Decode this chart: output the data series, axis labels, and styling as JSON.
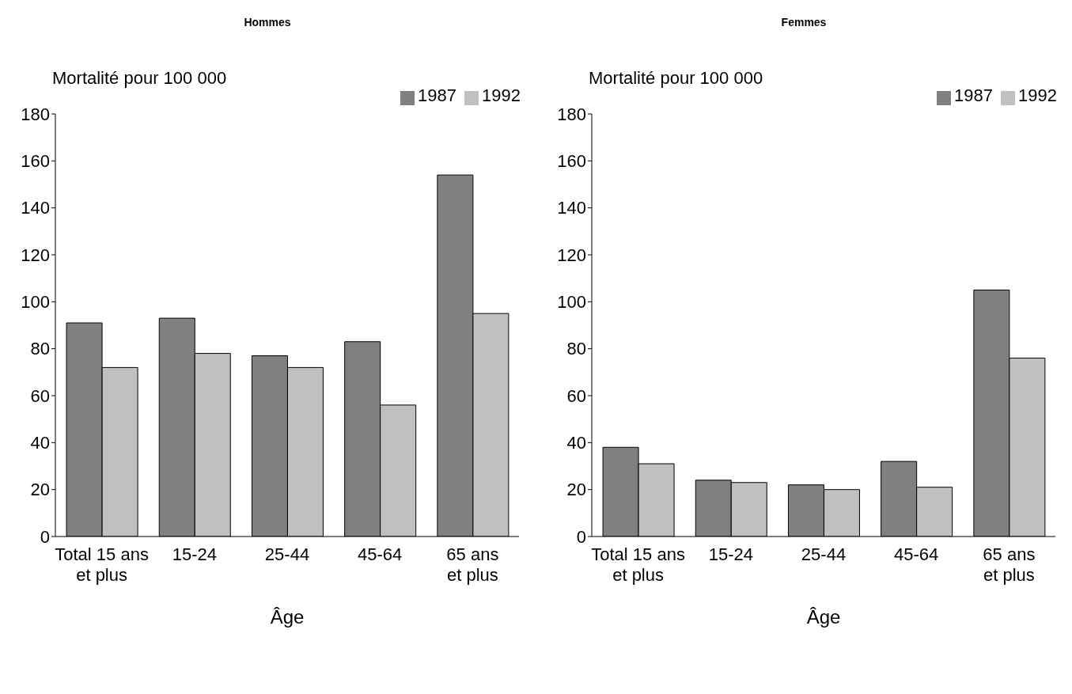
{
  "chart_data": [
    {
      "type": "bar",
      "title": "Hommes",
      "ylabel": "Mortalité pour 100 000",
      "xlabel": "Âge",
      "categories": [
        "Total 15 ans et plus",
        "15-24",
        "25-44",
        "45-64",
        "65 ans et plus"
      ],
      "series": [
        {
          "name": "1987",
          "color": "#808080",
          "values": [
            91,
            93,
            77,
            83,
            154
          ]
        },
        {
          "name": "1992",
          "color": "#c0c0c0",
          "values": [
            72,
            78,
            72,
            56,
            95
          ]
        }
      ],
      "ylim": [
        0,
        180
      ],
      "yticks": [
        0,
        20,
        40,
        60,
        80,
        100,
        120,
        140,
        160,
        180
      ],
      "grid": false,
      "legend": "top right"
    },
    {
      "type": "bar",
      "title": "Femmes",
      "ylabel": "Mortalité pour 100 000",
      "xlabel": "Âge",
      "categories": [
        "Total 15 ans et plus",
        "15-24",
        "25-44",
        "45-64",
        "65 ans et plus"
      ],
      "series": [
        {
          "name": "1987",
          "color": "#808080",
          "values": [
            38,
            24,
            22,
            32,
            105
          ]
        },
        {
          "name": "1992",
          "color": "#c0c0c0",
          "values": [
            31,
            23,
            20,
            21,
            76
          ]
        }
      ],
      "ylim": [
        0,
        180
      ],
      "yticks": [
        0,
        20,
        40,
        60,
        80,
        100,
        120,
        140,
        160,
        180
      ],
      "grid": false,
      "legend": "top right"
    }
  ]
}
